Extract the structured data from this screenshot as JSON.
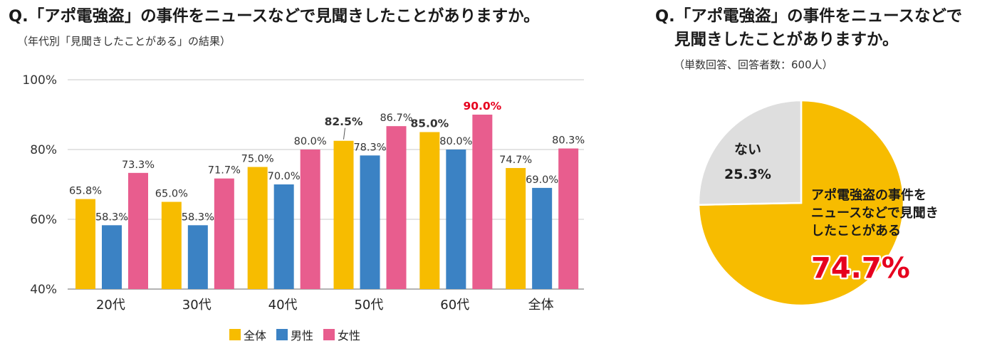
{
  "colors": {
    "all": "#f7bc00",
    "male": "#3b82c4",
    "female": "#e85d8e",
    "highlight": "#e6001e",
    "no_slice": "#dedede"
  },
  "left": {
    "title": "Q.「アポ電強盗」の事件をニュースなどで見聞きしたことがありますか。",
    "subtitle": "（年代別「見聞きしたことがある」の結果）"
  },
  "right": {
    "title_line1": "Q.「アポ電強盗」の事件をニュースなどで",
    "title_line2": "見聞きしたことがありますか。",
    "subtitle": "（単数回答、回答者数：600人）"
  },
  "chart_data": [
    {
      "type": "bar",
      "categories": [
        "20代",
        "30代",
        "40代",
        "50代",
        "60代",
        "全体"
      ],
      "series": [
        {
          "name": "全体",
          "values": [
            65.8,
            65.0,
            75.0,
            82.5,
            85.0,
            74.7
          ],
          "labels": [
            "65.8%",
            "65.0%",
            "75.0%",
            "82.5%",
            "85.0%",
            "74.7%"
          ]
        },
        {
          "name": "男性",
          "values": [
            58.3,
            58.3,
            70.0,
            78.3,
            80.0,
            69.0
          ],
          "labels": [
            "58.3%",
            "58.3%",
            "70.0%",
            "78.3%",
            "80.0%",
            "69.0%"
          ]
        },
        {
          "name": "女性",
          "values": [
            73.3,
            71.7,
            80.0,
            86.7,
            90.0,
            80.3
          ],
          "labels": [
            "73.3%",
            "71.7%",
            "80.0%",
            "86.7%",
            "90.0%",
            "80.3%"
          ]
        }
      ],
      "ylim": [
        40,
        100
      ],
      "yticks": [
        "40%",
        "60%",
        "80%",
        "100%"
      ],
      "grid": true,
      "legend": "bottom",
      "highlight": "90.0%"
    },
    {
      "type": "pie",
      "slices": [
        {
          "label_lines": [
            "アポ電強盗の事件を",
            "ニュースなどで見聞き",
            "したことがある"
          ],
          "value": 74.7,
          "value_label": "74.7%"
        },
        {
          "label_lines": [
            "ない"
          ],
          "value": 25.3,
          "value_label": "25.3%"
        }
      ]
    }
  ]
}
